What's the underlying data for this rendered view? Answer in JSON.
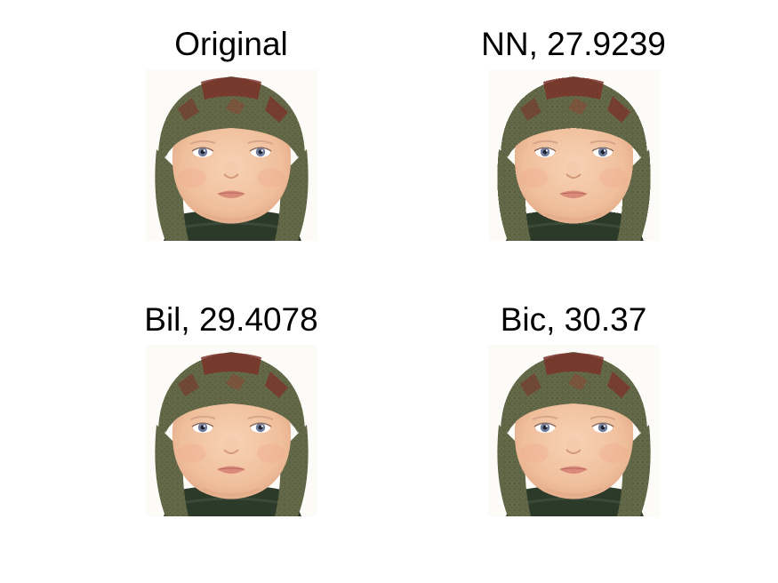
{
  "panels": [
    {
      "title": "Original",
      "image": "baby-face-in-knitted-hat"
    },
    {
      "title": "NN, 27.9239",
      "image": "baby-face-in-knitted-hat"
    },
    {
      "title": "Bil, 29.4078",
      "image": "baby-face-in-knitted-hat"
    },
    {
      "title": "Bic, 30.37",
      "image": "baby-face-in-knitted-hat"
    }
  ],
  "colors": {
    "hat_green": "#5e6344",
    "hat_dark": "#3f4330",
    "hat_red": "#7a3328",
    "skin": "#f3c4a3",
    "skin_shadow": "#e2a886",
    "sweater": "#2c3a2a",
    "eye": "#6f7e9c",
    "lips": "#d98a7a",
    "background": "#fdfbf8"
  }
}
